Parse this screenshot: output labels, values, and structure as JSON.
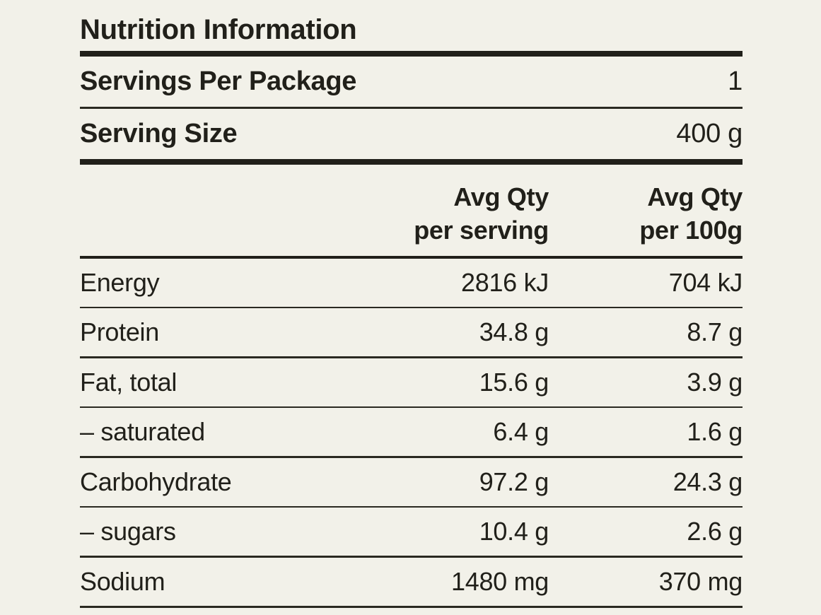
{
  "colors": {
    "background": "#f2f1e9",
    "text": "#21201a",
    "rule": "#21201a"
  },
  "panel": {
    "title": "Nutrition Information",
    "servings_row": {
      "label": "Servings Per Package",
      "value": "1"
    },
    "serving_size_row": {
      "label": "Serving Size",
      "value": "400 g"
    },
    "header": {
      "per_serving": {
        "line1": "Avg Qty",
        "line2": "per serving"
      },
      "per_100g": {
        "line1": "Avg Qty",
        "line2": "per 100g"
      }
    },
    "rows": [
      {
        "label": "Energy",
        "per_serving": "2816 kJ",
        "per_100g": "704 kJ"
      },
      {
        "label": "Protein",
        "per_serving": "34.8 g",
        "per_100g": "8.7 g"
      },
      {
        "label": "Fat, total",
        "per_serving": "15.6 g",
        "per_100g": "3.9 g"
      },
      {
        "label": "– saturated",
        "per_serving": "6.4 g",
        "per_100g": "1.6 g"
      },
      {
        "label": "Carbohydrate",
        "per_serving": "97.2 g",
        "per_100g": "24.3 g"
      },
      {
        "label": "– sugars",
        "per_serving": "10.4 g",
        "per_100g": "2.6 g"
      },
      {
        "label": "Sodium",
        "per_serving": "1480 mg",
        "per_100g": "370 mg"
      }
    ]
  }
}
